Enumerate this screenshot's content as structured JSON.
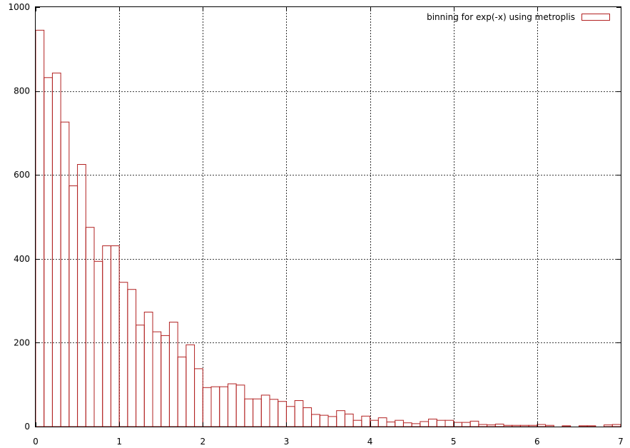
{
  "chart_data": {
    "type": "bar",
    "legend": "binning for exp(-x) using metroplis",
    "legend_position": "top-right",
    "grid": true,
    "bin_width": 0.1,
    "xlim": [
      0,
      7
    ],
    "ylim": [
      0,
      1000
    ],
    "xticks": [
      "0",
      "1",
      "2",
      "3",
      "4",
      "5",
      "6",
      "7"
    ],
    "yticks": [
      "0",
      "200",
      "400",
      "600",
      "800",
      "1000"
    ],
    "x": [
      0,
      0.1,
      0.2,
      0.3,
      0.4,
      0.5,
      0.6,
      0.7,
      0.8,
      0.9,
      1.0,
      1.1,
      1.2,
      1.3,
      1.4,
      1.5,
      1.6,
      1.7,
      1.8,
      1.9,
      2.0,
      2.1,
      2.2,
      2.3,
      2.4,
      2.5,
      2.6,
      2.7,
      2.8,
      2.9,
      3.0,
      3.1,
      3.2,
      3.3,
      3.4,
      3.5,
      3.6,
      3.7,
      3.8,
      3.9,
      4.0,
      4.1,
      4.2,
      4.3,
      4.4,
      4.5,
      4.6,
      4.7,
      4.8,
      4.9,
      5.0,
      5.1,
      5.2,
      5.3,
      5.4,
      5.5,
      5.6,
      5.7,
      5.8,
      5.9,
      6.0,
      6.1,
      6.2,
      6.3,
      6.4,
      6.5,
      6.6,
      6.7,
      6.8,
      6.9
    ],
    "values": [
      945,
      832,
      843,
      726,
      574,
      625,
      475,
      394,
      431,
      431,
      344,
      327,
      242,
      273,
      226,
      217,
      249,
      166,
      195,
      138,
      93,
      95,
      95,
      102,
      99,
      66,
      66,
      75,
      65,
      60,
      48,
      62,
      45,
      29,
      27,
      24,
      38,
      30,
      15,
      25,
      15,
      21,
      11,
      15,
      9,
      7,
      12,
      18,
      15,
      15,
      10,
      10,
      13,
      5,
      4,
      6,
      3,
      3,
      3,
      3,
      5,
      3,
      0,
      2,
      0,
      2,
      2,
      0,
      4,
      5
    ],
    "colors": {
      "bar": "#b22222",
      "grid": "#000000",
      "axis": "#000000"
    }
  }
}
